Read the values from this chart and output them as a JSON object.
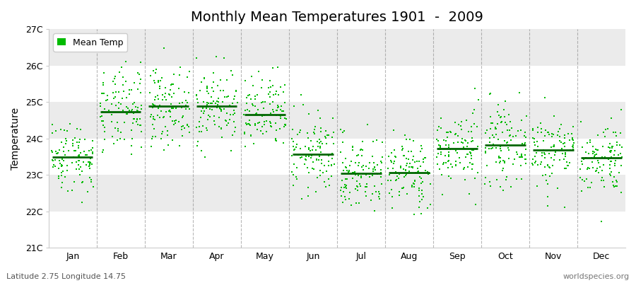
{
  "title": "Monthly Mean Temperatures 1901  -  2009",
  "ylabel": "Temperature",
  "footer_left": "Latitude 2.75 Longitude 14.75",
  "footer_right": "worldspecies.org",
  "legend_label": "Mean Temp",
  "months": [
    "Jan",
    "Feb",
    "Mar",
    "Apr",
    "May",
    "Jun",
    "Jul",
    "Aug",
    "Sep",
    "Oct",
    "Nov",
    "Dec"
  ],
  "month_means": [
    23.5,
    24.73,
    24.88,
    24.88,
    24.65,
    23.57,
    23.05,
    23.07,
    23.72,
    23.83,
    23.68,
    23.47
  ],
  "month_stds": [
    0.48,
    0.58,
    0.52,
    0.52,
    0.52,
    0.55,
    0.52,
    0.5,
    0.52,
    0.52,
    0.52,
    0.5
  ],
  "n_years": 109,
  "ylim": [
    21.0,
    27.0
  ],
  "ytick_labels": [
    "21C",
    "22C",
    "23C",
    "24C",
    "25C",
    "26C",
    "27C"
  ],
  "ytick_values": [
    21,
    22,
    23,
    24,
    25,
    26,
    27
  ],
  "scatter_color": "#00bb00",
  "mean_line_color": "#006600",
  "bg_color": "#ffffff",
  "band_light": "#ebebeb",
  "dashed_line_color": "#888888",
  "title_fontsize": 14,
  "seed": 42
}
